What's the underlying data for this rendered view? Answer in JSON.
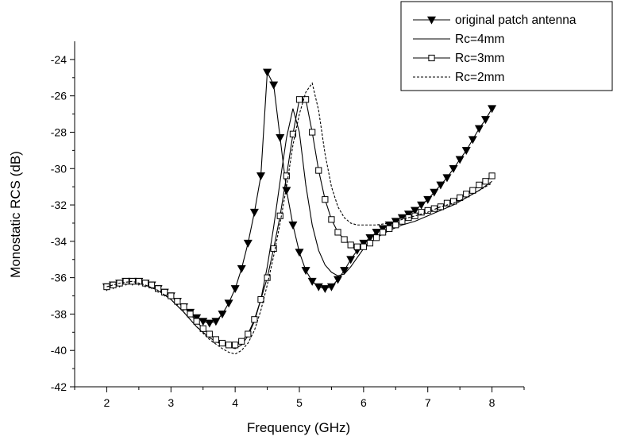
{
  "chart_data": {
    "type": "line",
    "title": "",
    "xlabel": "Frequency (GHz)",
    "ylabel": "Monostatic RCS (dB)",
    "xlim": [
      1.5,
      8.5
    ],
    "ylim": [
      -42,
      -23
    ],
    "xticks": [
      2,
      3,
      4,
      5,
      6,
      7,
      8
    ],
    "yticks": [
      -42,
      -40,
      -38,
      -36,
      -34,
      -32,
      -30,
      -28,
      -26,
      -24
    ],
    "legend_position": "top-right",
    "grid": false,
    "series": [
      {
        "name": "original patch antenna",
        "style": "solid",
        "marker": "triangle-down",
        "color": "#000000",
        "x": [
          2.0,
          2.1,
          2.2,
          2.3,
          2.4,
          2.5,
          2.6,
          2.7,
          2.8,
          2.9,
          3.0,
          3.1,
          3.2,
          3.3,
          3.4,
          3.5,
          3.6,
          3.7,
          3.8,
          3.9,
          4.0,
          4.1,
          4.2,
          4.3,
          4.4,
          4.5,
          4.6,
          4.7,
          4.8,
          4.9,
          5.0,
          5.1,
          5.2,
          5.3,
          5.4,
          5.5,
          5.6,
          5.7,
          5.8,
          5.9,
          6.0,
          6.1,
          6.2,
          6.3,
          6.4,
          6.5,
          6.6,
          6.7,
          6.8,
          6.9,
          7.0,
          7.1,
          7.2,
          7.3,
          7.4,
          7.5,
          7.6,
          7.7,
          7.8,
          7.9,
          8.0
        ],
        "y": [
          -36.5,
          -36.4,
          -36.3,
          -36.2,
          -36.2,
          -36.2,
          -36.3,
          -36.4,
          -36.6,
          -36.8,
          -37.0,
          -37.3,
          -37.6,
          -37.9,
          -38.2,
          -38.4,
          -38.5,
          -38.4,
          -38.0,
          -37.4,
          -36.6,
          -35.5,
          -34.1,
          -32.4,
          -30.4,
          -24.7,
          -25.4,
          -28.3,
          -31.2,
          -33.1,
          -34.6,
          -35.6,
          -36.2,
          -36.5,
          -36.6,
          -36.5,
          -36.1,
          -35.6,
          -35.0,
          -34.5,
          -34.1,
          -33.8,
          -33.5,
          -33.3,
          -33.1,
          -32.9,
          -32.7,
          -32.5,
          -32.3,
          -32.0,
          -31.7,
          -31.3,
          -30.9,
          -30.5,
          -30.0,
          -29.5,
          -29.0,
          -28.4,
          -27.8,
          -27.3,
          -26.7
        ]
      },
      {
        "name": "Rc=4mm",
        "style": "solid",
        "marker": "none",
        "color": "#000000",
        "x": [
          2.0,
          2.2,
          2.4,
          2.6,
          2.8,
          3.0,
          3.2,
          3.4,
          3.6,
          3.8,
          3.9,
          4.0,
          4.1,
          4.2,
          4.3,
          4.4,
          4.5,
          4.6,
          4.7,
          4.8,
          4.9,
          5.0,
          5.1,
          5.2,
          5.3,
          5.4,
          5.5,
          5.6,
          5.7,
          5.8,
          5.9,
          6.0,
          6.2,
          6.4,
          6.6,
          6.8,
          7.0,
          7.2,
          7.4,
          7.6,
          7.8,
          8.0
        ],
        "y": [
          -36.5,
          -36.3,
          -36.2,
          -36.4,
          -36.7,
          -37.2,
          -37.9,
          -38.7,
          -39.3,
          -39.7,
          -39.8,
          -39.9,
          -39.7,
          -39.2,
          -38.4,
          -37.2,
          -35.4,
          -33.2,
          -30.7,
          -28.3,
          -26.7,
          -28.0,
          -30.9,
          -33.1,
          -34.5,
          -35.3,
          -35.7,
          -35.9,
          -35.8,
          -35.4,
          -34.9,
          -34.4,
          -33.8,
          -33.4,
          -33.1,
          -32.9,
          -32.6,
          -32.3,
          -32.0,
          -31.6,
          -31.2,
          -30.7
        ]
      },
      {
        "name": "Rc=3mm",
        "style": "solid",
        "marker": "square-open",
        "color": "#000000",
        "x": [
          2.0,
          2.1,
          2.2,
          2.3,
          2.4,
          2.5,
          2.6,
          2.7,
          2.8,
          2.9,
          3.0,
          3.1,
          3.2,
          3.3,
          3.4,
          3.5,
          3.6,
          3.7,
          3.8,
          3.9,
          4.0,
          4.1,
          4.2,
          4.3,
          4.4,
          4.5,
          4.6,
          4.7,
          4.8,
          4.9,
          5.0,
          5.1,
          5.2,
          5.3,
          5.4,
          5.5,
          5.6,
          5.7,
          5.8,
          5.9,
          6.0,
          6.1,
          6.2,
          6.3,
          6.4,
          6.5,
          6.6,
          6.7,
          6.8,
          6.9,
          7.0,
          7.1,
          7.2,
          7.3,
          7.4,
          7.5,
          7.6,
          7.7,
          7.8,
          7.9,
          8.0
        ],
        "y": [
          -36.5,
          -36.4,
          -36.3,
          -36.2,
          -36.2,
          -36.2,
          -36.3,
          -36.4,
          -36.6,
          -36.8,
          -37.0,
          -37.3,
          -37.6,
          -38.0,
          -38.4,
          -38.8,
          -39.1,
          -39.4,
          -39.6,
          -39.7,
          -39.7,
          -39.5,
          -39.1,
          -38.3,
          -37.2,
          -36.0,
          -34.4,
          -32.6,
          -30.4,
          -28.1,
          -26.2,
          -26.2,
          -28.0,
          -30.1,
          -31.7,
          -32.8,
          -33.5,
          -33.9,
          -34.2,
          -34.3,
          -34.3,
          -34.1,
          -33.8,
          -33.5,
          -33.3,
          -33.1,
          -32.9,
          -32.7,
          -32.6,
          -32.4,
          -32.3,
          -32.2,
          -32.1,
          -31.9,
          -31.8,
          -31.6,
          -31.4,
          -31.2,
          -30.9,
          -30.7,
          -30.4
        ]
      },
      {
        "name": "Rc=2mm",
        "style": "dashed",
        "marker": "none",
        "color": "#000000",
        "x": [
          2.0,
          2.2,
          2.4,
          2.6,
          2.8,
          3.0,
          3.2,
          3.4,
          3.6,
          3.8,
          3.9,
          4.0,
          4.1,
          4.2,
          4.3,
          4.4,
          4.5,
          4.6,
          4.7,
          4.8,
          4.9,
          5.0,
          5.1,
          5.2,
          5.3,
          5.4,
          5.5,
          5.6,
          5.7,
          5.8,
          5.9,
          6.0,
          6.1,
          6.2,
          6.4,
          6.6,
          6.8,
          7.0,
          7.2,
          7.4,
          7.6,
          7.8,
          8.0
        ],
        "y": [
          -36.5,
          -36.3,
          -36.2,
          -36.4,
          -36.7,
          -37.2,
          -37.9,
          -38.7,
          -39.4,
          -39.9,
          -40.1,
          -40.2,
          -40.0,
          -39.6,
          -38.9,
          -37.8,
          -36.4,
          -34.8,
          -33.0,
          -31.0,
          -28.7,
          -27.0,
          -25.8,
          -25.3,
          -26.8,
          -29.2,
          -31.0,
          -32.1,
          -32.7,
          -33.0,
          -33.1,
          -33.1,
          -33.1,
          -33.1,
          -33.0,
          -32.8,
          -32.6,
          -32.4,
          -32.1,
          -31.9,
          -31.6,
          -31.2,
          -30.8
        ]
      }
    ]
  }
}
